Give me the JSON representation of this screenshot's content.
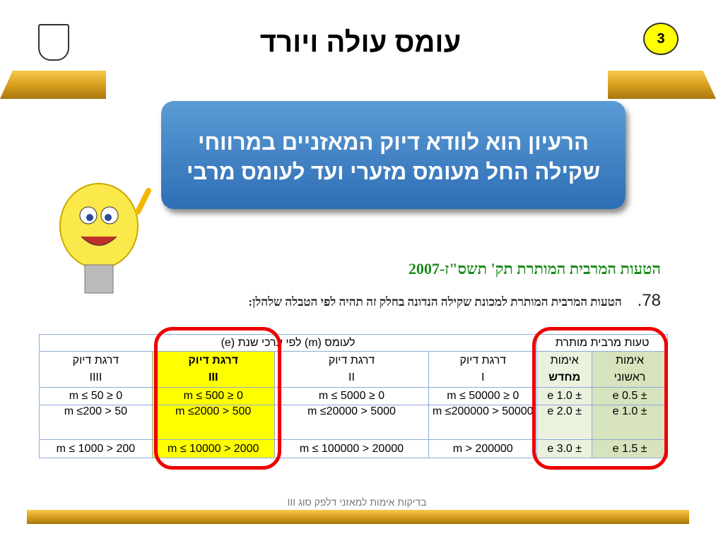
{
  "slide": {
    "number": "3",
    "title": "עומס עולה ויורד",
    "callout": [
      "הרעיון הוא לוודא דיוק המאזניים במרווחי",
      "שקילה החל מעומס מזערי ועד לעומס מרבי"
    ],
    "standard_heading": "הטעות המרבית המותרת תק' תשס\"ז-2007",
    "clause_number": "78.",
    "clause_text": "הטעות המרבית המותרת למכונת שקילה הנדונה בחלק זה תהיה לפי הטבלה שלהלן:",
    "footer": "בדיקות אימות למאזני דלפק סוג III",
    "accent_colors": {
      "highlight": "#ffff00",
      "ring": "#ee0000",
      "callout": "#3a7fc4",
      "heading": "#1a8a1a"
    }
  },
  "table": {
    "group_headers": {
      "mpe": "טעות מרבית מותרת",
      "load": "לעומס (m) לפי ערכי שנת (e)"
    },
    "columns": [
      {
        "l1": "אימות",
        "l2": "ראשוני"
      },
      {
        "l1": "אימות",
        "l2": "מחדש"
      },
      {
        "l1": "דרגת דיוק",
        "l2": "I"
      },
      {
        "l1": "דרגת דיוק",
        "l2": "II"
      },
      {
        "l1": "דרגת דיוק",
        "l2": "III"
      },
      {
        "l1": "דרגת דיוק",
        "l2": "IIII"
      }
    ],
    "rows": [
      [
        "± 0.5 e",
        "± 1.0 e",
        "0 ≤ m ≤ 50000",
        "0 ≤ m ≤ 5000",
        "0 ≤ m ≤ 500",
        "0 ≤ m ≤ 50"
      ],
      [
        "± 1.0 e",
        "± 2.0 e",
        "50000 < m ≤200000",
        "5000 < m ≤20000",
        "500 < m ≤2000",
        "50 < m ≤200"
      ],
      [
        "± 1.5 e",
        "± 3.0 e",
        "200000 < m",
        "20000 < m ≤ 100000",
        "2000 < m ≤ 10000",
        "200 < m ≤ 1000"
      ]
    ]
  }
}
